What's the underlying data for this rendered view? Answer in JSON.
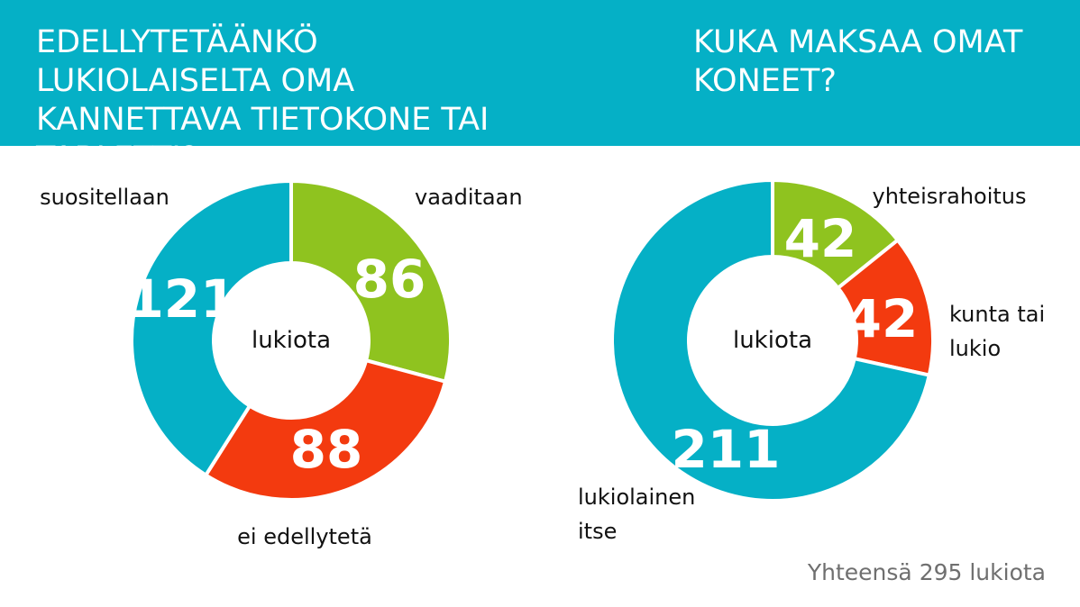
{
  "header": {
    "left_title": "EDELLYTETÄÄNKÖ LUKIOLAISELTA OMA KANNETTAVA TIETOKONE TAI TABLETTI?",
    "right_title": "KUKA MAKSAA OMAT KONEET?"
  },
  "colors": {
    "header_bg": "#05b0c6",
    "blue": "#05b0c6",
    "green": "#8fc31f",
    "red": "#f33a0f"
  },
  "chart_data": [
    {
      "type": "pie",
      "donut": true,
      "title": "EDELLYTETÄÄNKÖ LUKIOLAISELTA OMA KANNETTAVA TIETOKONE TAI TABLETTI?",
      "center_label": "lukiota",
      "categories": [
        "vaaditaan",
        "ei edellytetä",
        "suositellaan"
      ],
      "values": [
        86,
        88,
        121
      ],
      "colors": [
        "#8fc31f",
        "#f33a0f",
        "#05b0c6"
      ]
    },
    {
      "type": "pie",
      "donut": true,
      "title": "KUKA MAKSAA OMAT KONEET?",
      "center_label": "lukiota",
      "categories": [
        "yhteisrahoitus",
        "kunta tai lukio",
        "lukiolainen itse"
      ],
      "values": [
        42,
        42,
        211
      ],
      "colors": [
        "#8fc31f",
        "#f33a0f",
        "#05b0c6"
      ]
    }
  ],
  "footer": {
    "total_text": "Yhteensä 295 lukiota"
  }
}
